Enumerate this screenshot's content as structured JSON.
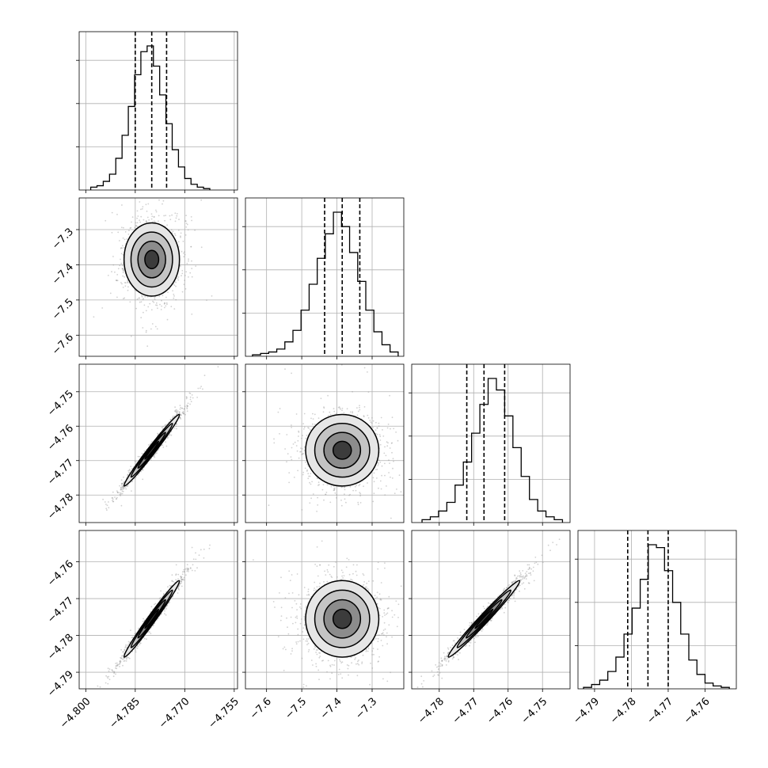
{
  "chart_data": {
    "type": "corner",
    "style": {
      "frame_color": "#000000",
      "grid_color": "#b0b0b0",
      "hist_color": "#000000",
      "point_color": "#9a9a9a",
      "contour_color": "#000000"
    },
    "parameters": [
      {
        "range": [
          -4.802,
          -4.754
        ],
        "ticks": [
          -4.8,
          -4.785,
          -4.77,
          -4.755
        ],
        "tick_labels": [
          "−4.800",
          "−4.785",
          "−4.770",
          "−4.755"
        ],
        "hist": {
          "counts": [
            2,
            3,
            6,
            11,
            22,
            38,
            58,
            80,
            96,
            100,
            86,
            66,
            46,
            28,
            16,
            8,
            4,
            2,
            1
          ],
          "edges": [
            -4.7985,
            -4.7966,
            -4.7947,
            -4.7928,
            -4.7909,
            -4.789,
            -4.7871,
            -4.7852,
            -4.7833,
            -4.7814,
            -4.7795,
            -4.7776,
            -4.7757,
            -4.7738,
            -4.7719,
            -4.77,
            -4.7681,
            -4.7662,
            -4.7643,
            -4.7624
          ]
        },
        "quantiles": [
          -4.785,
          -4.78,
          -4.7755
        ]
      },
      {
        "range": [
          -7.66,
          -7.21
        ],
        "ticks": [
          -7.6,
          -7.5,
          -7.4,
          -7.3
        ],
        "tick_labels": [
          "−7.6",
          "−7.5",
          "−7.4",
          "−7.3"
        ],
        "hist": {
          "counts": [
            1,
            2,
            3,
            5,
            10,
            18,
            32,
            50,
            68,
            85,
            100,
            90,
            72,
            52,
            32,
            17,
            8,
            3
          ],
          "edges": [
            -7.64,
            -7.617,
            -7.594,
            -7.571,
            -7.548,
            -7.525,
            -7.502,
            -7.479,
            -7.456,
            -7.433,
            -7.41,
            -7.387,
            -7.364,
            -7.341,
            -7.318,
            -7.295,
            -7.272,
            -7.249,
            -7.226
          ]
        },
        "quantiles": [
          -7.435,
          -7.385,
          -7.335
        ]
      },
      {
        "range": [
          -4.788,
          -4.742
        ],
        "ticks": [
          -4.78,
          -4.77,
          -4.76,
          -4.75
        ],
        "tick_labels": [
          "−4.78",
          "−4.77",
          "−4.76",
          "−4.75"
        ],
        "hist": {
          "counts": [
            2,
            4,
            8,
            14,
            26,
            42,
            62,
            82,
            100,
            92,
            74,
            52,
            32,
            16,
            8,
            4,
            2
          ],
          "edges": [
            -4.785,
            -4.7826,
            -4.7802,
            -4.7778,
            -4.7754,
            -4.773,
            -4.7706,
            -4.7682,
            -4.7658,
            -4.7634,
            -4.761,
            -4.7586,
            -4.7562,
            -4.7538,
            -4.7514,
            -4.749,
            -4.7466,
            -4.7442
          ]
        },
        "quantiles": [
          -4.772,
          -4.767,
          -4.761
        ]
      },
      {
        "range": [
          -4.7945,
          -4.7515
        ],
        "ticks": [
          -4.79,
          -4.78,
          -4.77,
          -4.76
        ],
        "tick_labels": [
          "−4.79",
          "−4.78",
          "−4.77",
          "−4.76"
        ],
        "hist": {
          "counts": [
            1,
            3,
            6,
            12,
            22,
            38,
            56,
            76,
            100,
            98,
            82,
            60,
            38,
            20,
            10,
            4,
            2,
            1
          ],
          "edges": [
            -4.793,
            -4.7908,
            -4.7886,
            -4.7864,
            -4.7842,
            -4.782,
            -4.7798,
            -4.7776,
            -4.7754,
            -4.7732,
            -4.771,
            -4.7688,
            -4.7666,
            -4.7644,
            -4.7622,
            -4.76,
            -4.7578,
            -4.7556,
            -4.7534
          ]
        },
        "quantiles": [
          -4.781,
          -4.7755,
          -4.77
        ]
      }
    ],
    "pair_stats": [
      {
        "i": 1,
        "j": 0,
        "center": [
          -4.78,
          -7.385
        ],
        "sd": [
          0.0042,
          0.052
        ],
        "corr": 0.0
      },
      {
        "i": 2,
        "j": 0,
        "center": [
          -4.78,
          -4.767
        ],
        "sd": [
          0.0042,
          0.0052
        ],
        "corr": 0.985
      },
      {
        "i": 2,
        "j": 1,
        "center": [
          -7.385,
          -4.767
        ],
        "sd": [
          0.052,
          0.0052
        ],
        "corr": 0.0
      },
      {
        "i": 3,
        "j": 0,
        "center": [
          -4.78,
          -4.7755
        ],
        "sd": [
          0.0042,
          0.0052
        ],
        "corr": 0.985
      },
      {
        "i": 3,
        "j": 1,
        "center": [
          -7.385,
          -4.7755
        ],
        "sd": [
          0.052,
          0.0052
        ],
        "corr": 0.0
      },
      {
        "i": 3,
        "j": 2,
        "center": [
          -4.767,
          -4.7755
        ],
        "sd": [
          0.0052,
          0.0052
        ],
        "corr": 0.985
      }
    ],
    "contour_levels_sigma": [
      0.5,
      1.0,
      1.5,
      2.0
    ],
    "grid": true,
    "legend": "none"
  }
}
